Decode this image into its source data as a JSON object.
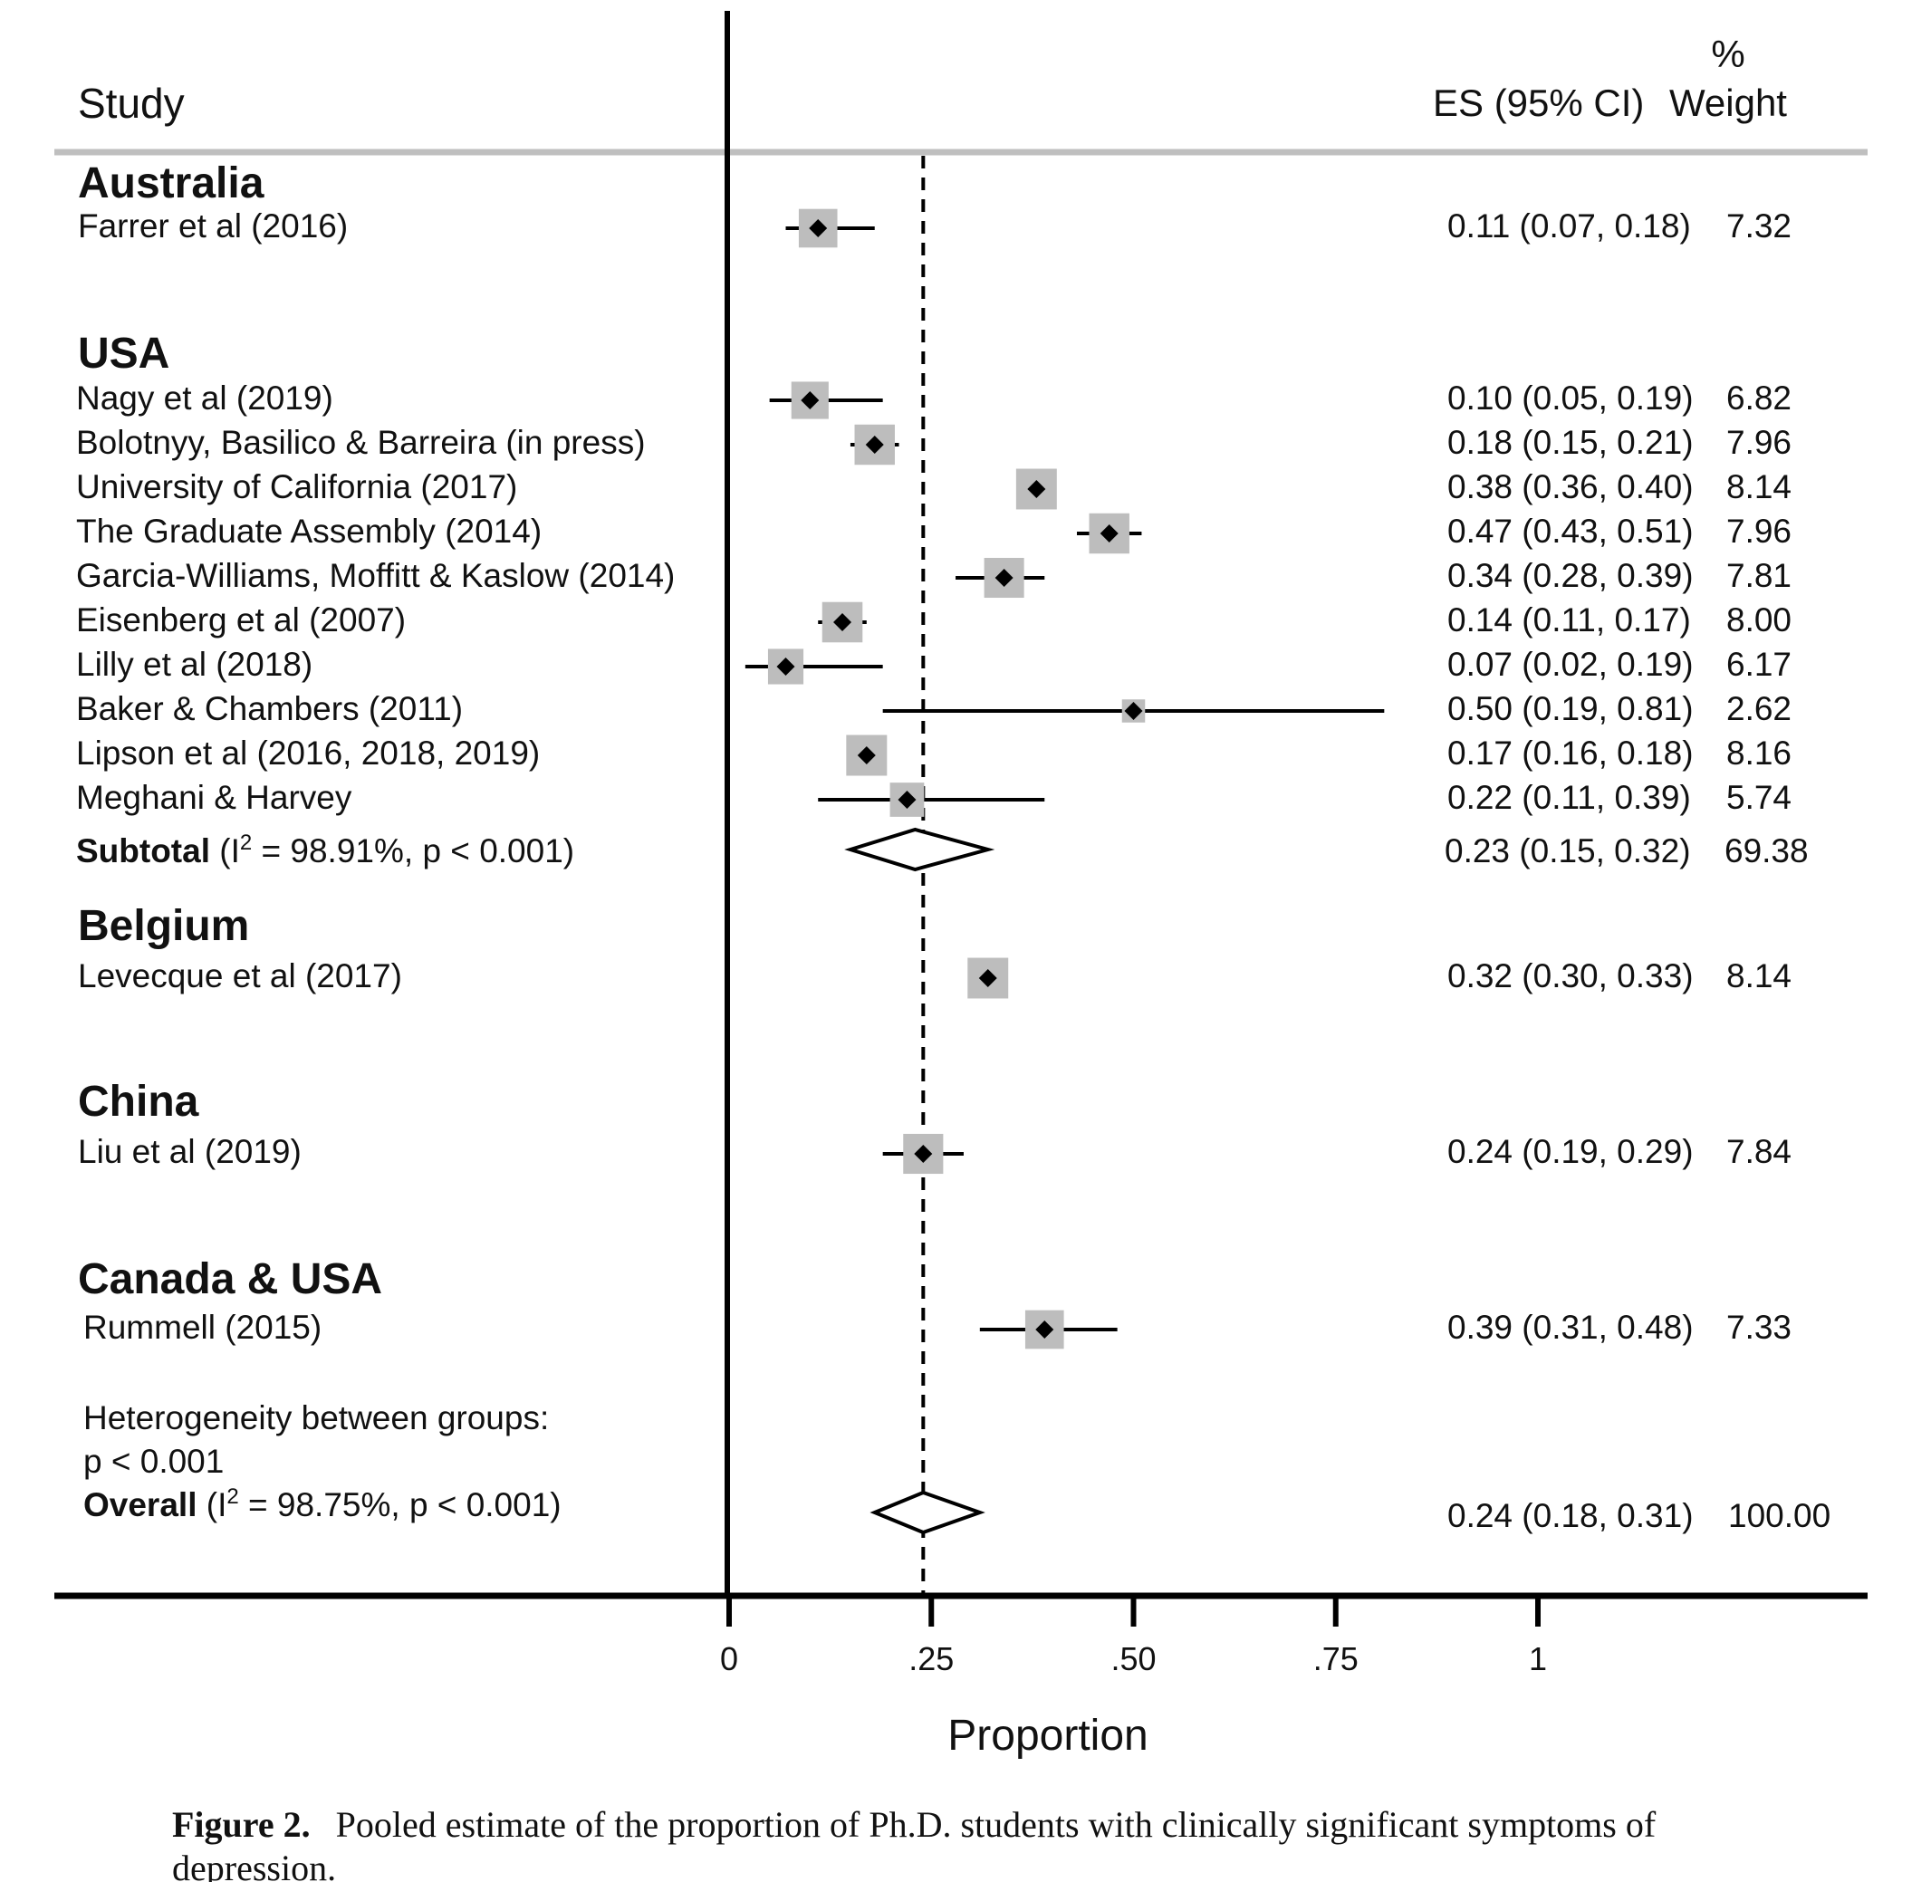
{
  "chart_data": {
    "type": "forest",
    "xlabel": "Proportion",
    "xlim": [
      0,
      1
    ],
    "xticks": [
      {
        "value": 0,
        "label": "0"
      },
      {
        "value": 0.25,
        "label": ".25"
      },
      {
        "value": 0.5,
        "label": ".50"
      },
      {
        "value": 0.75,
        "label": ".75"
      },
      {
        "value": 1,
        "label": "1"
      }
    ],
    "reference_line": 0.24,
    "columns": {
      "study": "Study",
      "es": "ES (95% CI)",
      "weight_pct": "%",
      "weight": "Weight"
    },
    "groups": [
      {
        "name": "Australia",
        "studies": [
          {
            "label": "Farrer et al (2016)",
            "es": 0.11,
            "lo": 0.07,
            "hi": 0.18,
            "ci_text": "0.11 (0.07, 0.18)",
            "weight": 7.32,
            "weight_text": "7.32"
          }
        ]
      },
      {
        "name": "USA",
        "studies": [
          {
            "label": "Nagy et al (2019)",
            "es": 0.1,
            "lo": 0.05,
            "hi": 0.19,
            "ci_text": "0.10 (0.05, 0.19)",
            "weight": 6.82,
            "weight_text": "6.82"
          },
          {
            "label": "Bolotnyy, Basilico & Barreira (in press)",
            "es": 0.18,
            "lo": 0.15,
            "hi": 0.21,
            "ci_text": "0.18 (0.15, 0.21)",
            "weight": 7.96,
            "weight_text": "7.96"
          },
          {
            "label": "University of California (2017)",
            "es": 0.38,
            "lo": 0.36,
            "hi": 0.4,
            "ci_text": "0.38 (0.36, 0.40)",
            "weight": 8.14,
            "weight_text": "8.14"
          },
          {
            "label": "The Graduate Assembly (2014)",
            "es": 0.47,
            "lo": 0.43,
            "hi": 0.51,
            "ci_text": "0.47 (0.43, 0.51)",
            "weight": 7.96,
            "weight_text": "7.96"
          },
          {
            "label": "Garcia-Williams, Moffitt & Kaslow (2014)",
            "es": 0.34,
            "lo": 0.28,
            "hi": 0.39,
            "ci_text": "0.34 (0.28, 0.39)",
            "weight": 7.81,
            "weight_text": "7.81"
          },
          {
            "label": "Eisenberg et al (2007)",
            "es": 0.14,
            "lo": 0.11,
            "hi": 0.17,
            "ci_text": "0.14 (0.11, 0.17)",
            "weight": 8.0,
            "weight_text": "8.00"
          },
          {
            "label": "Lilly et al (2018)",
            "es": 0.07,
            "lo": 0.02,
            "hi": 0.19,
            "ci_text": "0.07 (0.02, 0.19)",
            "weight": 6.17,
            "weight_text": "6.17"
          },
          {
            "label": "Baker & Chambers (2011)",
            "es": 0.5,
            "lo": 0.19,
            "hi": 0.81,
            "ci_text": "0.50 (0.19, 0.81)",
            "weight": 2.62,
            "weight_text": "2.62"
          },
          {
            "label": "Lipson et al (2016, 2018, 2019)",
            "es": 0.17,
            "lo": 0.16,
            "hi": 0.18,
            "ci_text": "0.17 (0.16, 0.18)",
            "weight": 8.16,
            "weight_text": "8.16"
          },
          {
            "label": "Meghani & Harvey",
            "es": 0.22,
            "lo": 0.11,
            "hi": 0.39,
            "ci_text": "0.22 (0.11, 0.39)",
            "weight": 5.74,
            "weight_text": "5.74"
          }
        ],
        "subtotal": {
          "label_bold": "Subtotal",
          "label_rest_prefix": "(I",
          "label_sup": "2",
          "label_rest_suffix": " = 98.91%, p < 0.001)",
          "es": 0.23,
          "lo": 0.15,
          "hi": 0.32,
          "ci_text": "0.23 (0.15, 0.32)",
          "weight": 69.38,
          "weight_text": "69.38"
        }
      },
      {
        "name": "Belgium",
        "studies": [
          {
            "label": "Levecque et al (2017)",
            "es": 0.32,
            "lo": 0.3,
            "hi": 0.33,
            "ci_text": "0.32 (0.30, 0.33)",
            "weight": 8.14,
            "weight_text": "8.14"
          }
        ]
      },
      {
        "name": "China",
        "studies": [
          {
            "label": "Liu et al (2019)",
            "es": 0.24,
            "lo": 0.19,
            "hi": 0.29,
            "ci_text": "0.24 (0.19, 0.29)",
            "weight": 7.84,
            "weight_text": "7.84"
          }
        ]
      },
      {
        "name": "Canada & USA",
        "studies": [
          {
            "label": "Rummell (2015)",
            "es": 0.39,
            "lo": 0.31,
            "hi": 0.48,
            "ci_text": "0.39 (0.31, 0.48)",
            "weight": 7.33,
            "weight_text": "7.33"
          }
        ]
      }
    ],
    "heterogeneity": {
      "line1": "Heterogeneity between groups:",
      "line2": "p < 0.001"
    },
    "overall": {
      "label_bold": "Overall",
      "label_rest_prefix": "(I",
      "label_sup": "2",
      "label_rest_suffix": " = 98.75%, p < 0.001)",
      "es": 0.24,
      "lo": 0.18,
      "hi": 0.31,
      "ci_text": "0.24 (0.18, 0.31)",
      "weight": 100.0,
      "weight_text": "100.00"
    }
  },
  "caption": {
    "label": "Figure 2.",
    "text": "Pooled estimate of the proportion of Ph.D. students with clinically significant symptoms of",
    "text_line2": "depression."
  }
}
